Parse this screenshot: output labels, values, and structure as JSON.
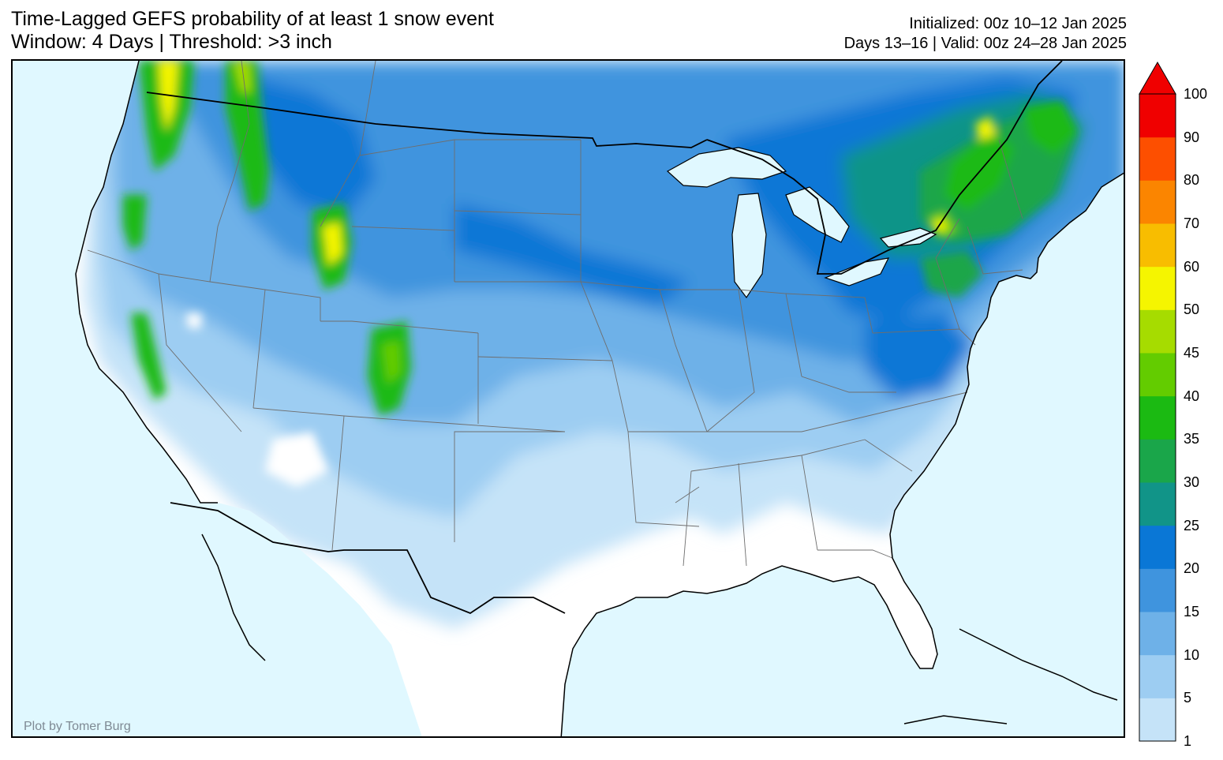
{
  "header": {
    "title_line1": "Time-Lagged GEFS probability of at least 1 snow event",
    "title_line2": "Window: 4 Days | Threshold: >3 inch",
    "initialized": "Initialized: 00z 10–12 Jan 2025",
    "valid": "Days 13–16 | Valid: 00z 24–28 Jan 2025"
  },
  "credit": "Plot by Tomer Burg",
  "colors": {
    "ocean": "#e0f8ff",
    "land": "#ffffff",
    "boundary": "#000000",
    "state_line": "#6e6e6e"
  },
  "colorbar": {
    "levels": [
      "1",
      "5",
      "10",
      "15",
      "20",
      "25",
      "30",
      "35",
      "40",
      "45",
      "50",
      "60",
      "70",
      "80",
      "90",
      "100"
    ],
    "colors": [
      "#c5e3f8",
      "#9dcdf2",
      "#6eb1e8",
      "#3f94de",
      "#0a77d6",
      "#119488",
      "#1aa64a",
      "#1bba12",
      "#63cc00",
      "#a6dc00",
      "#f5f500",
      "#f8bd00",
      "#fb8500",
      "#fd4f00",
      "#f00000"
    ],
    "extend_color": "#f00000"
  }
}
